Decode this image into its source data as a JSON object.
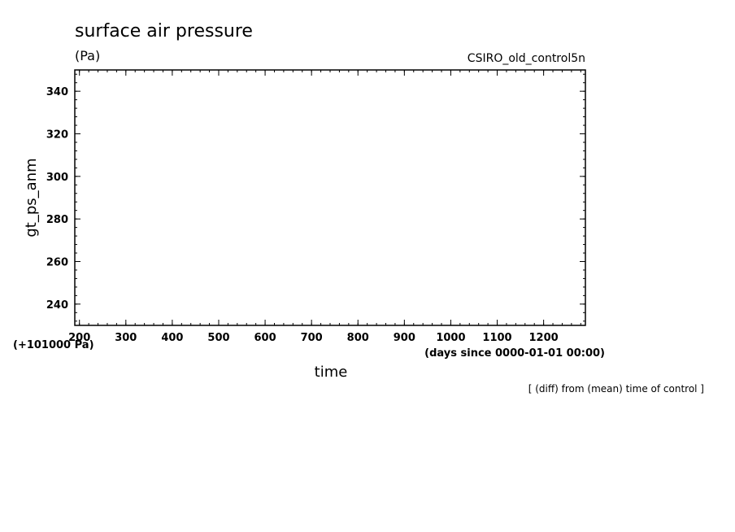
{
  "chart_data": {
    "type": "line",
    "title": "surface air pressure",
    "unit_label": "(Pa)",
    "run_label": "CSIRO_old_control5n",
    "ylabel": "gt_ps_anm",
    "xlabel": "time",
    "x_units": "(days since 0000-01-01 00:00)",
    "y_offset_label": "(+101000 Pa)",
    "footnote": "[ (diff) from (mean) time of control ]",
    "xlim": [
      190,
      1290
    ],
    "ylim": [
      230,
      350
    ],
    "x_ticks": [
      200,
      300,
      400,
      500,
      600,
      700,
      800,
      900,
      1000,
      1100,
      1200
    ],
    "y_ticks": [
      240,
      260,
      280,
      300,
      320,
      340
    ],
    "x_minor_step": 20,
    "y_minor_step": 4,
    "grid": false,
    "series": []
  }
}
